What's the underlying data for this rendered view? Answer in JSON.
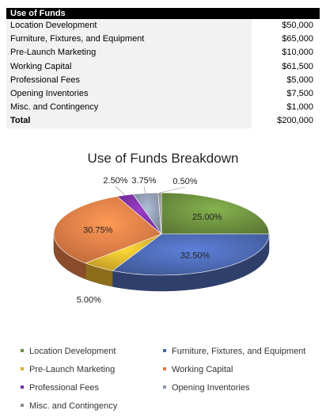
{
  "table": {
    "header": "Use of Funds",
    "rows": [
      {
        "label": "Location Development",
        "amount": "$50,000"
      },
      {
        "label": "Furniture, Fixtures, and Equipment",
        "amount": "$65,000"
      },
      {
        "label": "Pre-Launch Marketing",
        "amount": "$10,000"
      },
      {
        "label": "Working Capital",
        "amount": "$61,500"
      },
      {
        "label": "Professional Fees",
        "amount": "$5,000"
      },
      {
        "label": "Opening Inventories",
        "amount": "$7,500"
      },
      {
        "label": "Misc. and Contingency",
        "amount": "$1,000"
      }
    ],
    "total_label": "Total",
    "total_amount": "$200,000"
  },
  "chart_data": {
    "type": "pie",
    "title": "Use of Funds Breakdown",
    "style": "3d",
    "legend_position": "bottom",
    "categories": [
      "Location Development",
      "Furniture, Fixtures, and Equipment",
      "Pre-Launch Marketing",
      "Working Capital",
      "Professional Fees",
      "Opening Inventories",
      "Misc. and Contingency"
    ],
    "values": [
      25.0,
      32.5,
      5.0,
      30.75,
      2.5,
      3.75,
      0.5
    ],
    "labels": [
      "25.00%",
      "32.50%",
      "5.00%",
      "30.75%",
      "2.50%",
      "3.75%",
      "0.50%"
    ],
    "colors": [
      "#6b8e3e",
      "#4a66ae",
      "#e0b02c",
      "#e07a45",
      "#7a2fa0",
      "#8c97ad",
      "#8b8b8b"
    ]
  }
}
